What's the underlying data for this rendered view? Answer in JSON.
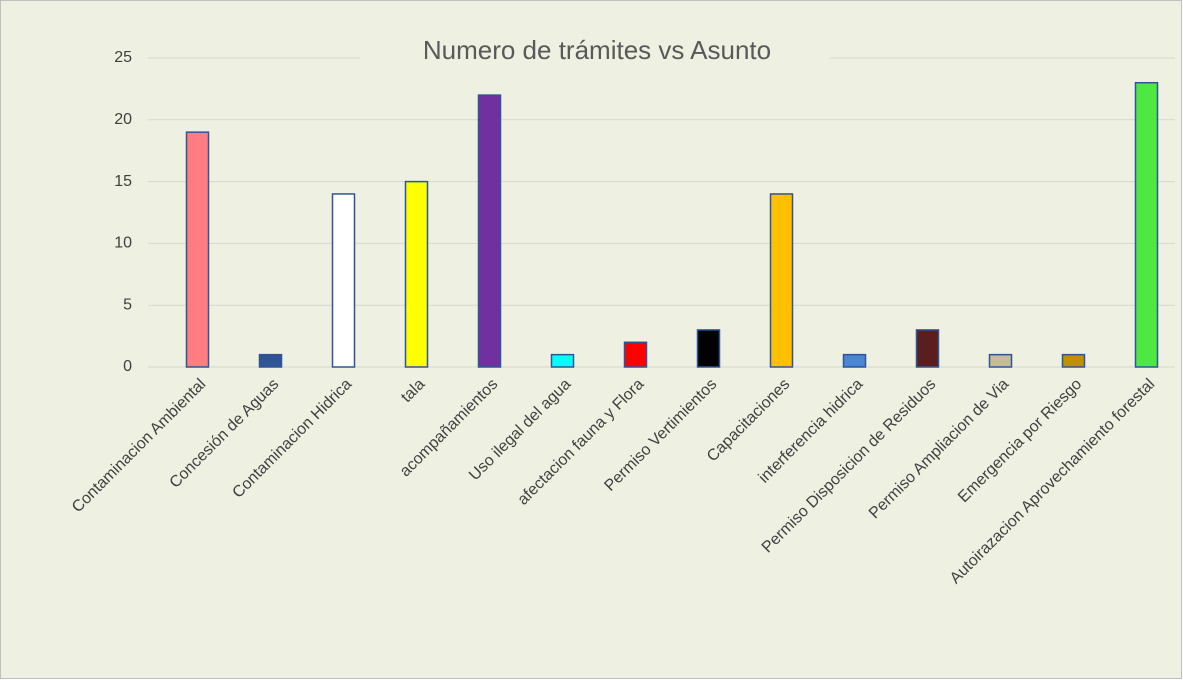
{
  "chart_data": {
    "type": "bar",
    "title": "Numero de trámites vs Asunto",
    "categories": [
      "Contaminacion Ambiental",
      "Concesión de Aguas",
      "Contaminacion Hidrica",
      "tala",
      "acompañamientos",
      "Uso ilegal del agua",
      "afectacion fauna y Flora",
      "Permiso Vertimientos",
      "Capacitaciones",
      "interferencia hidrica",
      "Permiso Disposicion de Residuos",
      "Permiso Ampliacion de Via",
      "Emergencia por Riesgo",
      "Autoirazacion Aprovechamiento forestal"
    ],
    "values": [
      19,
      1,
      14,
      15,
      22,
      1,
      2,
      3,
      14,
      1,
      3,
      1,
      1,
      23
    ],
    "colors": [
      "#ff7c80",
      "#2f5597",
      "#ffffff",
      "#ffff00",
      "#7030a0",
      "#00ffff",
      "#ff0000",
      "#000000",
      "#ffc000",
      "#4a86d4",
      "#5a1e1e",
      "#c4bd97",
      "#bf9000",
      "#4ee843"
    ],
    "ylim": [
      0,
      25
    ],
    "yticks": [
      0,
      5,
      10,
      15,
      20,
      25
    ],
    "grid": true
  }
}
